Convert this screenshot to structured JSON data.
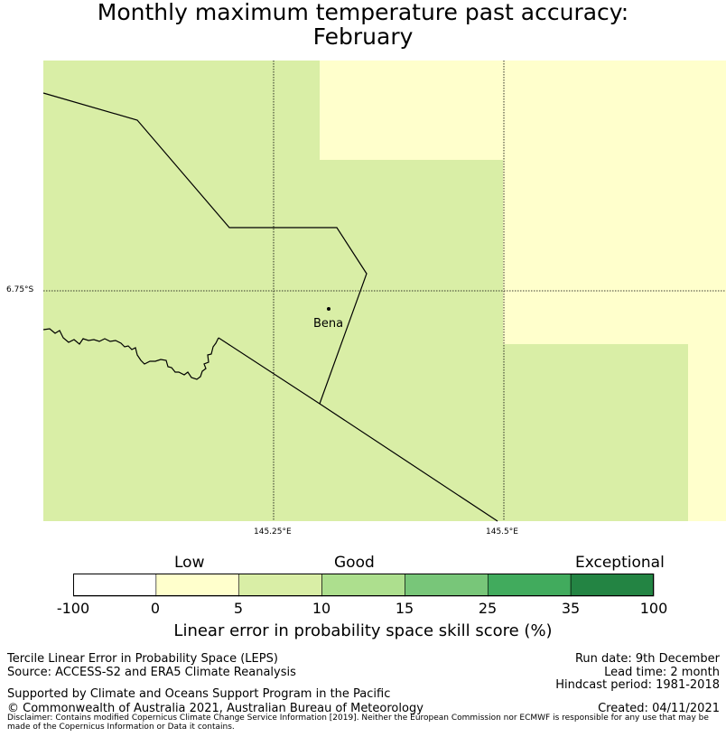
{
  "title": {
    "line1": "Monthly maximum temperature past accuracy:",
    "line2": "February"
  },
  "map": {
    "latitude_label": "6.75°S",
    "longitude_labels": [
      "145.25°E",
      "145.5°E"
    ],
    "town": "Bena",
    "colors": {
      "low": "#ffffcc",
      "good": "#d9eea6",
      "ocean": "#ffffff"
    }
  },
  "colorbar": {
    "categories": {
      "low": "Low",
      "good": "Good",
      "exceptional": "Exceptional"
    },
    "ticks": [
      "-100",
      "0",
      "5",
      "10",
      "15",
      "25",
      "35",
      "100"
    ],
    "colors": [
      "#ffffff",
      "#ffffcc",
      "#d9eea6",
      "#addf8e",
      "#78c679",
      "#41ab5d",
      "#238443"
    ],
    "label": "Linear error in probability space skill score (%)"
  },
  "footer": {
    "left": {
      "line1": "Tercile Linear Error in Probability Space (LEPS)",
      "line2": "Source: ACCESS-S2 and ERA5 Climate Reanalysis",
      "support": "Supported by Climate and Oceans Support Program in the Pacific",
      "copyright": "© Commonwealth of Australia 2021, Australian Bureau of Meteorology"
    },
    "right": {
      "run_date": "Run date: 9th December",
      "lead_time": "Lead time: 2 month",
      "hindcast": "Hindcast period: 1981-2018",
      "created": "Created: 04/11/2021"
    },
    "disclaimer": "Disclaimer: Contains modified Copernicus Climate Change Service Information [2019]. Neither the European Commission nor ECMWF is responsible for any use that may be made of the Copernicus Information or Data it contains."
  }
}
